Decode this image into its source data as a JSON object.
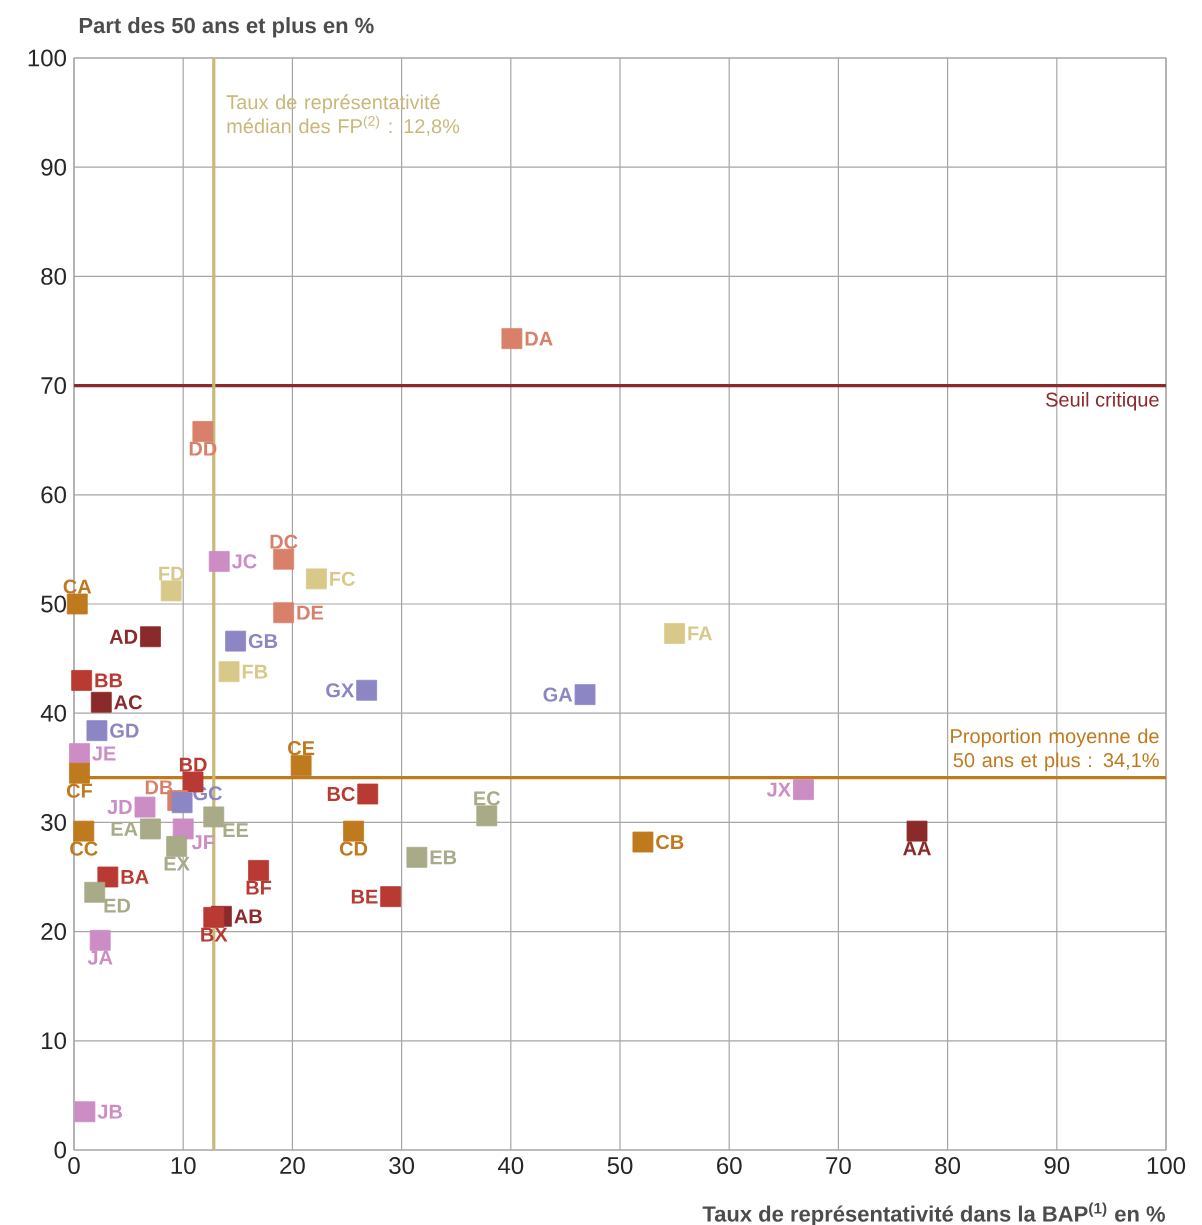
{
  "chart_data": {
    "type": "scatter",
    "marker": "square",
    "grid": true,
    "xlabel": "Taux de représentativité dans la BAP$^{(1)}$ en %",
    "ylabel": "Part des 50 ans et plus en %",
    "xlim": [
      0,
      100
    ],
    "ylim": [
      0,
      100
    ],
    "xticks": [
      0,
      10,
      20,
      30,
      40,
      50,
      60,
      70,
      80,
      90,
      100
    ],
    "yticks": [
      0,
      10,
      20,
      30,
      40,
      50,
      60,
      70,
      80,
      90,
      100
    ],
    "x": [
      40.1,
      11.8,
      19.2,
      13.3,
      22.2,
      8.9,
      0.3,
      19.2,
      7.0,
      14.8,
      55.0,
      14.2,
      0.7,
      26.8,
      46.8,
      2.5,
      2.1,
      0.5,
      20.8,
      0.5,
      10.9,
      26.9,
      66.8,
      9.5,
      9.9,
      6.5,
      37.8,
      12.8,
      7.0,
      10.0,
      0.9,
      25.6,
      77.2,
      52.1,
      9.4,
      31.4,
      16.9,
      3.1,
      1.9,
      29.0,
      13.5,
      12.8,
      2.4,
      1.0
    ],
    "values": [
      74.3,
      65.8,
      54.1,
      53.9,
      52.3,
      51.2,
      50.0,
      49.2,
      47.0,
      46.6,
      47.3,
      43.8,
      43.0,
      42.1,
      41.7,
      41.0,
      38.4,
      36.3,
      35.2,
      34.5,
      33.7,
      32.6,
      33.0,
      32.0,
      31.8,
      31.4,
      30.6,
      30.5,
      29.4,
      29.4,
      29.2,
      29.2,
      29.2,
      28.2,
      27.8,
      26.8,
      25.6,
      25.0,
      23.6,
      23.2,
      21.4,
      21.3,
      19.2,
      3.5
    ],
    "colors": [
      "#d9806a",
      "#d9806a",
      "#d9806a",
      "#cc8cc4",
      "#d8c98a",
      "#d8c98a",
      "#c07a1e",
      "#d9806a",
      "#8b2a2a",
      "#8c86c4",
      "#d8c98a",
      "#d8c98a",
      "#b83a33",
      "#8c86c4",
      "#8c86c4",
      "#8b2a2a",
      "#8c86c4",
      "#cc8cc4",
      "#c07a1e",
      "#c07a1e",
      "#b83a33",
      "#b83a33",
      "#cc8cc4",
      "#d9806a",
      "#8c86c4",
      "#cc8cc4",
      "#a8aa88",
      "#a8aa88",
      "#a8aa88",
      "#cc8cc4",
      "#c07a1e",
      "#c07a1e",
      "#8b2a2a",
      "#c07a1e",
      "#a8aa88",
      "#a8aa88",
      "#b83a33",
      "#b83a33",
      "#a8aa88",
      "#b83a33",
      "#8b2a2a",
      "#b83a33",
      "#cc8cc4",
      "#cc8cc4"
    ],
    "annotations": [
      {
        "text": "DA",
        "x": 40.1,
        "y": 74.3
      },
      {
        "text": "DD",
        "x": 11.8,
        "y": 65.8
      },
      {
        "text": "DC",
        "x": 19.2,
        "y": 54.1
      },
      {
        "text": "JC",
        "x": 13.3,
        "y": 53.9
      },
      {
        "text": "FC",
        "x": 22.2,
        "y": 52.3
      },
      {
        "text": "FD",
        "x": 8.9,
        "y": 51.2
      },
      {
        "text": "CA",
        "x": 0.3,
        "y": 50.0
      },
      {
        "text": "DE",
        "x": 19.2,
        "y": 49.2
      },
      {
        "text": "AD",
        "x": 7.0,
        "y": 47.0
      },
      {
        "text": "GB",
        "x": 14.8,
        "y": 46.6
      },
      {
        "text": "FA",
        "x": 55.0,
        "y": 47.3
      },
      {
        "text": "FB",
        "x": 14.2,
        "y": 43.8
      },
      {
        "text": "BB",
        "x": 0.7,
        "y": 43.0
      },
      {
        "text": "GX",
        "x": 26.8,
        "y": 42.1
      },
      {
        "text": "GA",
        "x": 46.8,
        "y": 41.7
      },
      {
        "text": "AC",
        "x": 2.5,
        "y": 41.0
      },
      {
        "text": "GD",
        "x": 2.1,
        "y": 38.4
      },
      {
        "text": "JE",
        "x": 0.5,
        "y": 36.3
      },
      {
        "text": "CE",
        "x": 20.8,
        "y": 35.2
      },
      {
        "text": "CF",
        "x": 0.5,
        "y": 34.5
      },
      {
        "text": "BD",
        "x": 10.9,
        "y": 33.7
      },
      {
        "text": "BC",
        "x": 26.9,
        "y": 32.6
      },
      {
        "text": "JX",
        "x": 66.8,
        "y": 33.0
      },
      {
        "text": "DB",
        "x": 9.5,
        "y": 32.0
      },
      {
        "text": "GC",
        "x": 9.9,
        "y": 31.8
      },
      {
        "text": "JD",
        "x": 6.5,
        "y": 31.4
      },
      {
        "text": "EC",
        "x": 37.8,
        "y": 30.6
      },
      {
        "text": "EE",
        "x": 12.8,
        "y": 30.5
      },
      {
        "text": "EA",
        "x": 7.0,
        "y": 29.4
      },
      {
        "text": "JF",
        "x": 10.0,
        "y": 29.4
      },
      {
        "text": "CC",
        "x": 0.9,
        "y": 29.2
      },
      {
        "text": "CD",
        "x": 25.6,
        "y": 29.2
      },
      {
        "text": "AA",
        "x": 77.2,
        "y": 29.2
      },
      {
        "text": "CB",
        "x": 52.1,
        "y": 28.2
      },
      {
        "text": "EX",
        "x": 9.4,
        "y": 27.8
      },
      {
        "text": "EB",
        "x": 31.4,
        "y": 26.8
      },
      {
        "text": "BF",
        "x": 16.9,
        "y": 25.6
      },
      {
        "text": "BA",
        "x": 3.1,
        "y": 25.0
      },
      {
        "text": "ED",
        "x": 1.9,
        "y": 23.6
      },
      {
        "text": "BE",
        "x": 29.0,
        "y": 23.2
      },
      {
        "text": "AB",
        "x": 13.5,
        "y": 21.4
      },
      {
        "text": "BX",
        "x": 12.8,
        "y": 21.3
      },
      {
        "text": "JA",
        "x": 2.4,
        "y": 19.2
      },
      {
        "text": "JB",
        "x": 1.0,
        "y": 3.5
      }
    ],
    "ref_lines": [
      {
        "axis": "y",
        "value": 70,
        "label": "Seuil critique",
        "color": "#8b2a2a"
      },
      {
        "axis": "y",
        "value": 34.1,
        "label": "Proportion moyenne de 50 ans et plus : 34,1%",
        "color": "#c07a1e"
      },
      {
        "axis": "x",
        "value": 12.8,
        "label": "Taux de représentativité médian des FP$^{(2)}$ : 12,8%",
        "color": "#c8b87a"
      }
    ]
  }
}
